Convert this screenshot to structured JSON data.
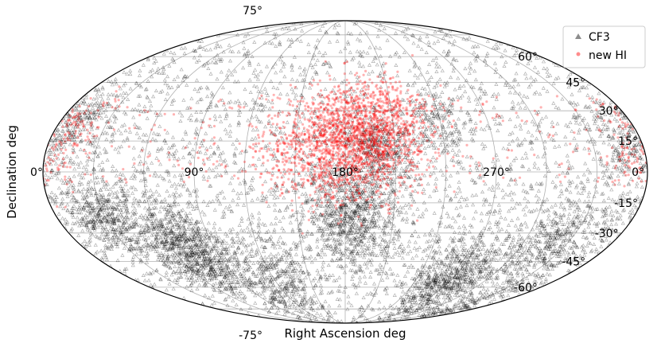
{
  "chart_data": {
    "type": "scatter",
    "projection": "mollweide",
    "title": "",
    "xlabel": "Right Ascension deg",
    "ylabel": "Declination deg",
    "grid": true,
    "legend_position": "top-right",
    "xlim": [
      0,
      360
    ],
    "ylim": [
      -90,
      90
    ],
    "x_tick_labels": [
      {
        "value": 270,
        "label": "270°"
      },
      {
        "value": 180,
        "label": "180°"
      },
      {
        "value": 90,
        "label": "90°"
      },
      {
        "value": 0,
        "label": "0°"
      }
    ],
    "y_tick_labels": [
      {
        "value": 75,
        "label": "75°"
      },
      {
        "value": 60,
        "label": "60°"
      },
      {
        "value": 45,
        "label": "45°"
      },
      {
        "value": 30,
        "label": "30°"
      },
      {
        "value": 15,
        "label": "15°"
      },
      {
        "value": 0,
        "label": "0°"
      },
      {
        "value": -15,
        "label": "-15°"
      },
      {
        "value": -30,
        "label": "-30°"
      },
      {
        "value": -45,
        "label": "-45°"
      },
      {
        "value": -60,
        "label": "-60°"
      },
      {
        "value": -75,
        "label": "-75°"
      }
    ],
    "series": [
      {
        "name": "CF3",
        "marker": "triangle",
        "color": "#000000",
        "alpha": 0.35,
        "distribution": {
          "background_count": 3000,
          "dec_range": [
            -88,
            88
          ],
          "clusters": [
            {
              "ra": 70,
              "dec": -40,
              "sd": 12,
              "n": 900
            },
            {
              "ra": 30,
              "dec": -20,
              "sd": 10,
              "n": 500
            },
            {
              "ra": 120,
              "dec": -55,
              "sd": 12,
              "n": 400
            },
            {
              "ra": 185,
              "dec": -20,
              "sd": 13,
              "n": 900
            },
            {
              "ra": 200,
              "dec": 12,
              "sd": 8,
              "n": 300
            },
            {
              "ra": 270,
              "dec": -55,
              "sd": 12,
              "n": 700
            },
            {
              "ra": 320,
              "dec": -35,
              "sd": 12,
              "n": 400
            },
            {
              "ra": 350,
              "dec": 10,
              "sd": 10,
              "n": 200
            },
            {
              "ra": 10,
              "dec": 25,
              "sd": 8,
              "n": 200
            },
            {
              "ra": 240,
              "dec": 25,
              "sd": 8,
              "n": 150
            },
            {
              "ra": 330,
              "dec": -70,
              "sd": 10,
              "n": 150
            }
          ]
        }
      },
      {
        "name": "new HI",
        "marker": "circle",
        "color": "#ff0000",
        "alpha": 0.3,
        "distribution": {
          "background_count": 300,
          "dec_range": [
            -5,
            38
          ],
          "clusters": [
            {
              "ra": 185,
              "dec": 15,
              "sd": 14,
              "n": 1400
            },
            {
              "ra": 150,
              "dec": 10,
              "sd": 12,
              "n": 300
            },
            {
              "ra": 210,
              "dec": 25,
              "sd": 12,
              "n": 300
            },
            {
              "ra": 10,
              "dec": 20,
              "sd": 8,
              "n": 100
            },
            {
              "ra": 355,
              "dec": 5,
              "sd": 8,
              "n": 80
            }
          ]
        }
      }
    ]
  }
}
